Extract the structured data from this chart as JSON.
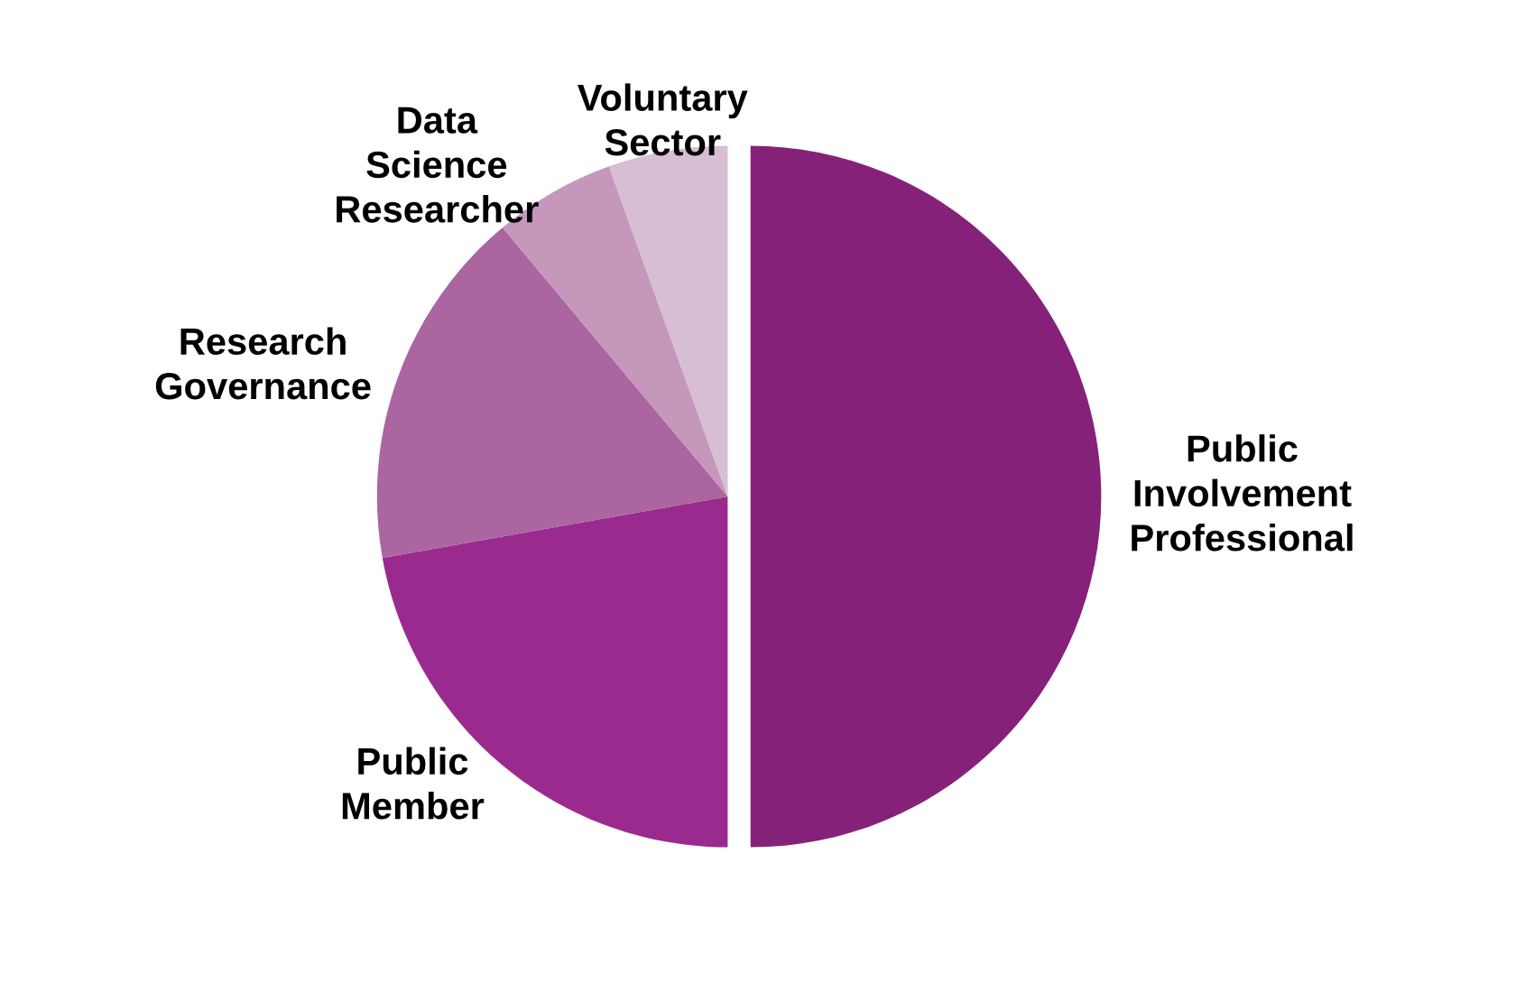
{
  "chart_data": {
    "type": "pie",
    "categories": [
      "Public\nInvolvement\nProfessional",
      "Public\nMember",
      "Research\nGovernance",
      "Data\nScience\nResearcher",
      "Voluntary\nSector"
    ],
    "values": [
      50,
      22.2,
      16.7,
      5.6,
      5.5
    ],
    "colors": [
      "#86217a",
      "#9b2a8f",
      "#ab65a0",
      "#c597bb",
      "#d7bed3"
    ],
    "legend": false
  }
}
